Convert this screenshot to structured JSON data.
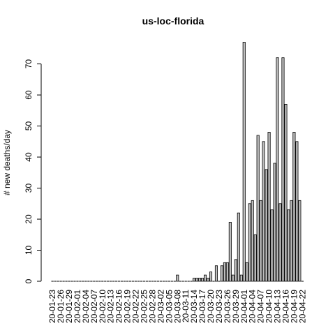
{
  "chart_data": {
    "type": "bar",
    "title": "us-loc-florida",
    "xlabel": "",
    "ylabel": "# new deaths/day",
    "ylim": [
      0,
      78
    ],
    "yticks": [
      0,
      10,
      20,
      30,
      40,
      50,
      60,
      70
    ],
    "bar_color": "#bebebe",
    "categories": [
      "20-01-23",
      "20-01-24",
      "20-01-25",
      "20-01-26",
      "20-01-27",
      "20-01-28",
      "20-01-29",
      "20-01-30",
      "20-01-31",
      "20-02-01",
      "20-02-02",
      "20-02-03",
      "20-02-04",
      "20-02-05",
      "20-02-06",
      "20-02-07",
      "20-02-08",
      "20-02-09",
      "20-02-10",
      "20-02-11",
      "20-02-12",
      "20-02-13",
      "20-02-14",
      "20-02-15",
      "20-02-16",
      "20-02-17",
      "20-02-18",
      "20-02-19",
      "20-02-20",
      "20-02-21",
      "20-02-22",
      "20-02-23",
      "20-02-24",
      "20-02-25",
      "20-02-26",
      "20-02-27",
      "20-02-28",
      "20-02-29",
      "20-03-01",
      "20-03-02",
      "20-03-03",
      "20-03-04",
      "20-03-05",
      "20-03-06",
      "20-03-07",
      "20-03-08",
      "20-03-09",
      "20-03-10",
      "20-03-11",
      "20-03-12",
      "20-03-13",
      "20-03-14",
      "20-03-15",
      "20-03-16",
      "20-03-17",
      "20-03-18",
      "20-03-19",
      "20-03-20",
      "20-03-21",
      "20-03-22",
      "20-03-23",
      "20-03-24",
      "20-03-25",
      "20-03-26",
      "20-03-27",
      "20-03-28",
      "20-03-29",
      "20-03-30",
      "20-03-31",
      "20-04-01",
      "20-04-02",
      "20-04-03",
      "20-04-04",
      "20-04-05",
      "20-04-06",
      "20-04-07",
      "20-04-08",
      "20-04-09",
      "20-04-10",
      "20-04-11",
      "20-04-12",
      "20-04-13",
      "20-04-14",
      "20-04-15",
      "20-04-16",
      "20-04-17",
      "20-04-18",
      "20-04-19",
      "20-04-20",
      "20-04-21",
      "20-04-22"
    ],
    "tick_labels": [
      "20-01-23",
      "20-01-26",
      "20-01-29",
      "20-02-01",
      "20-02-04",
      "20-02-07",
      "20-02-10",
      "20-02-13",
      "20-02-16",
      "20-02-19",
      "20-02-22",
      "20-02-25",
      "20-02-28",
      "20-03-02",
      "20-03-05",
      "20-03-08",
      "20-03-11",
      "20-03-14",
      "20-03-17",
      "20-03-20",
      "20-03-23",
      "20-03-26",
      "20-03-29",
      "20-04-01",
      "20-04-04",
      "20-04-07",
      "20-04-10",
      "20-04-13",
      "20-04-16",
      "20-04-19",
      "20-04-22"
    ],
    "values": [
      0,
      0,
      0,
      0,
      0,
      0,
      0,
      0,
      0,
      0,
      0,
      0,
      0,
      0,
      0,
      0,
      0,
      0,
      0,
      0,
      0,
      0,
      0,
      0,
      0,
      0,
      0,
      0,
      0,
      0,
      0,
      0,
      0,
      0,
      0,
      0,
      0,
      0,
      0,
      0,
      0,
      0,
      0,
      0,
      0,
      2,
      0,
      0,
      0,
      0,
      0,
      1,
      1,
      1,
      1,
      2,
      1,
      3,
      0,
      5,
      0,
      5,
      6,
      6,
      19,
      2,
      7,
      22,
      2,
      77,
      6,
      25,
      26,
      15,
      47,
      26,
      45,
      36,
      48,
      23,
      38,
      72,
      25,
      72,
      57,
      23,
      26,
      48,
      45,
      26,
      0
    ]
  }
}
